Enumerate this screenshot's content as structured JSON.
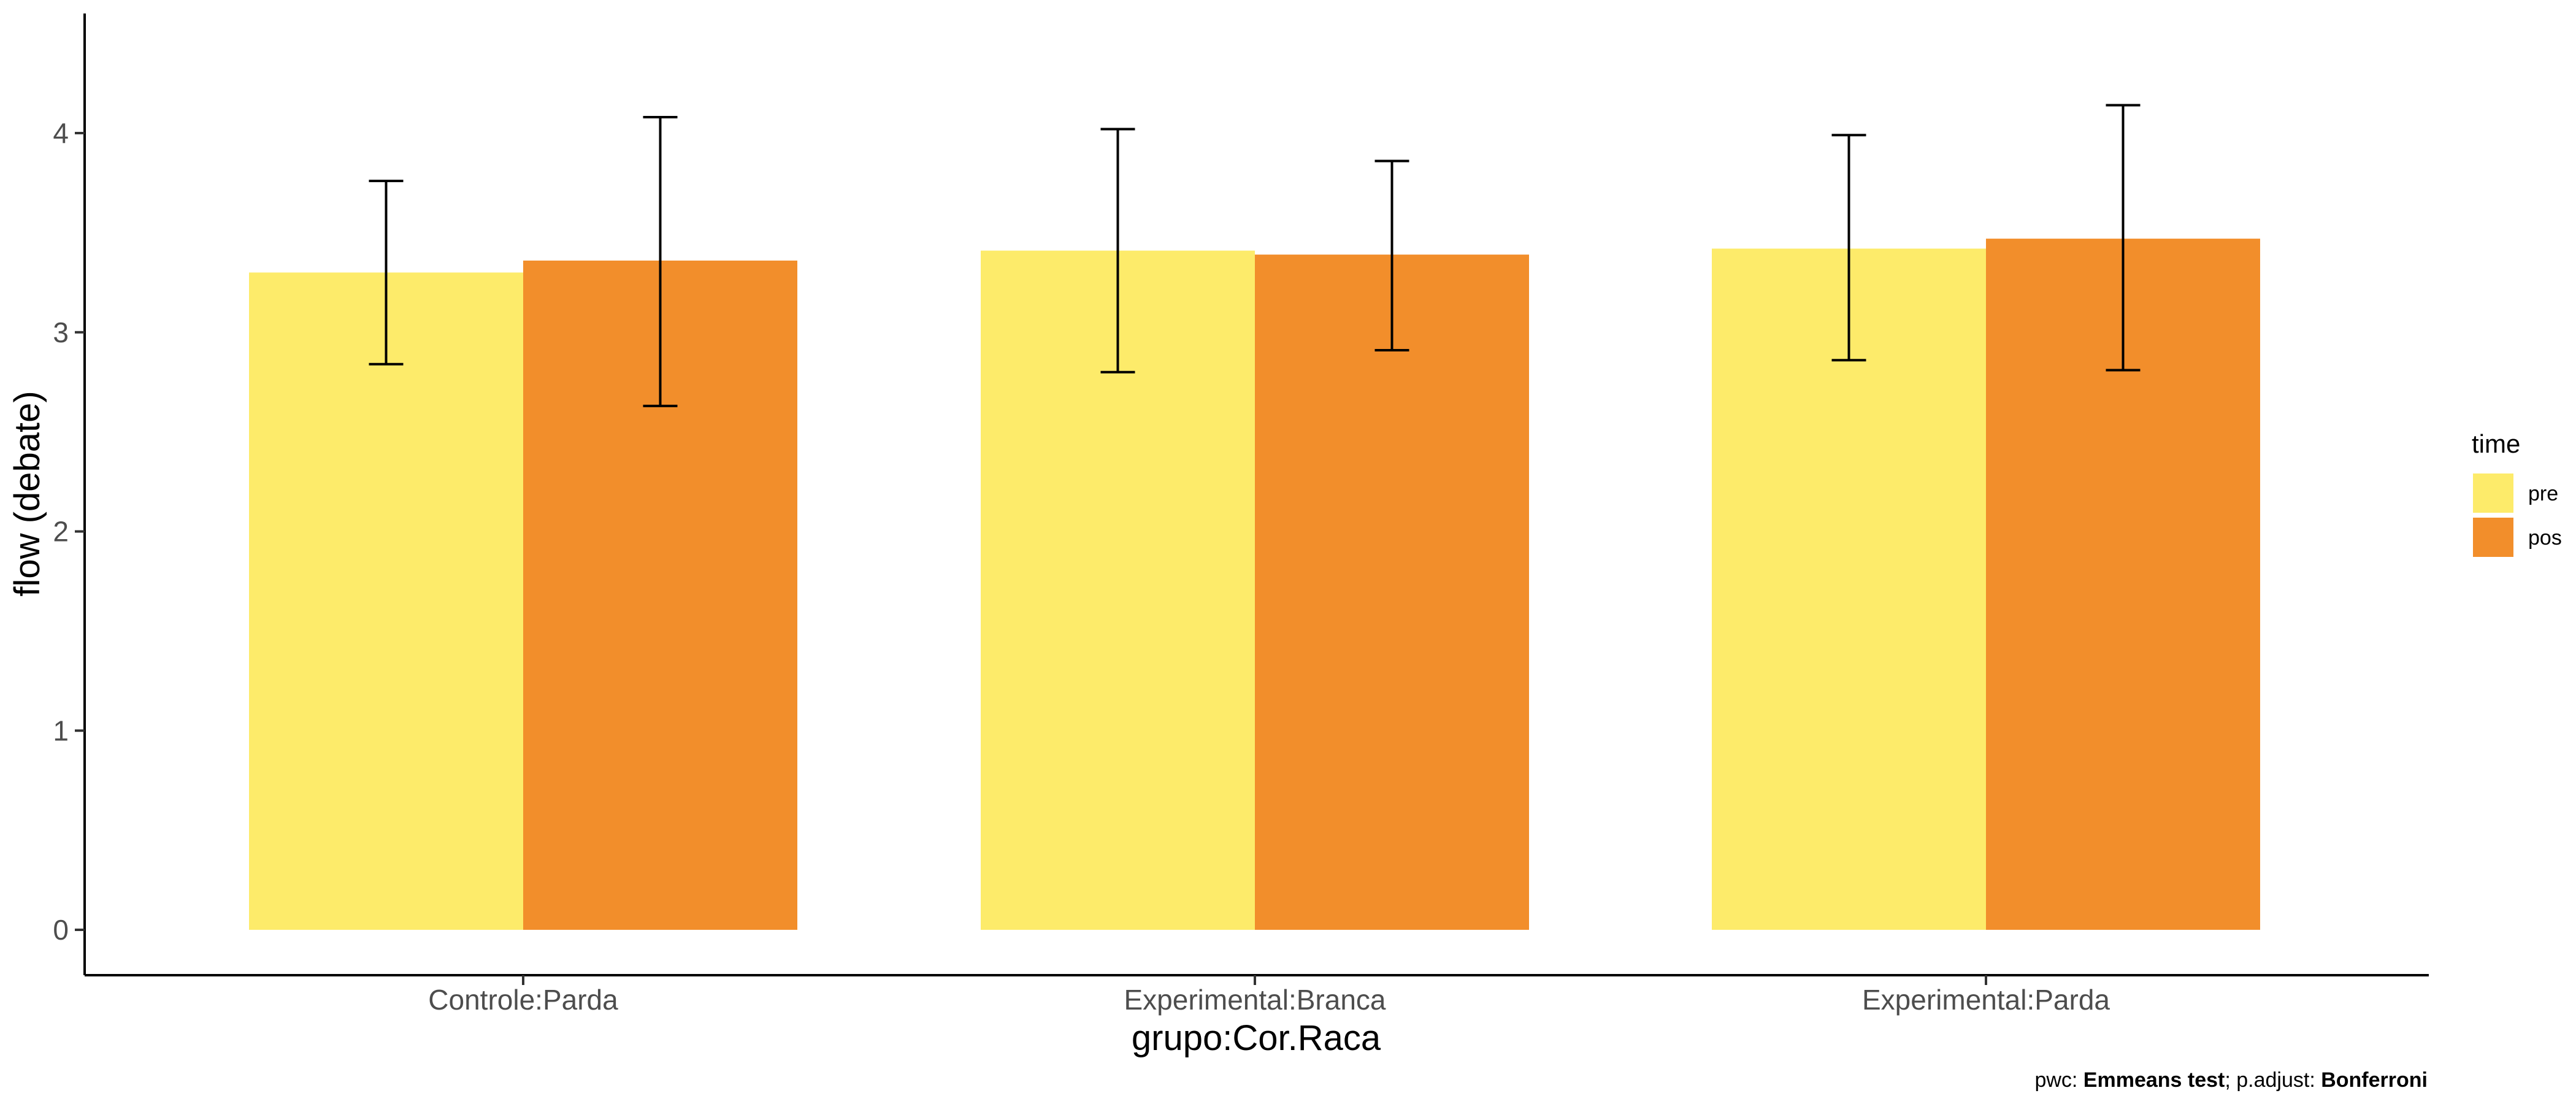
{
  "chart_data": {
    "type": "bar",
    "xlabel": "grupo:Cor.Raca",
    "ylabel": "flow (debate)",
    "categories": [
      "Controle:Parda",
      "Experimental:Branca",
      "Experimental:Parda"
    ],
    "series": [
      {
        "name": "pre",
        "color": "#FDEB6A",
        "values": [
          3.3,
          3.41,
          3.42
        ],
        "error_low": [
          2.84,
          2.8,
          2.86
        ],
        "error_high": [
          3.76,
          4.02,
          3.99
        ]
      },
      {
        "name": "pos",
        "color": "#F28E2B",
        "values": [
          3.36,
          3.39,
          3.47
        ],
        "error_low": [
          2.63,
          2.91,
          2.81
        ],
        "error_high": [
          4.08,
          3.86,
          4.14
        ]
      }
    ],
    "ylim": [
      -0.22,
      4.6
    ],
    "yticks": [
      0,
      1,
      2,
      3,
      4
    ],
    "ytick_labels": [
      "0",
      "1",
      "2",
      "3",
      "4"
    ],
    "grid": false,
    "legend": {
      "title": "time",
      "placement": "right"
    },
    "caption": {
      "prefix": "pwc: ",
      "test": "Emmeans test",
      "middle": "; p.adjust: ",
      "method": "Bonferroni"
    }
  }
}
